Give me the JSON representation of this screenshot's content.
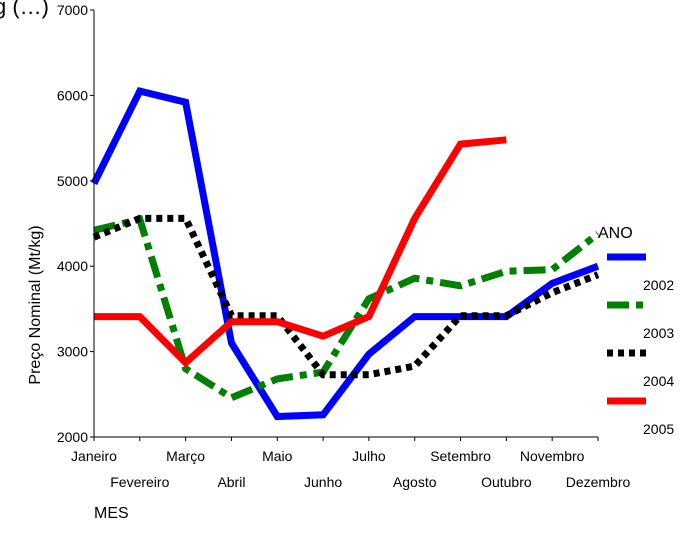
{
  "chart_data": {
    "type": "line",
    "title_fragment": "g (…)",
    "xlabel": "MES",
    "ylabel": "Preço Nominal (Mt/kg)",
    "ylim": [
      2000,
      7000
    ],
    "yticks": [
      2000,
      3000,
      4000,
      5000,
      6000,
      7000
    ],
    "categories": [
      "Janeiro",
      "Fevereiro",
      "Março",
      "Abril",
      "Maio",
      "Junho",
      "Julho",
      "Agosto",
      "Setembro",
      "Outubro",
      "Novembro",
      "Dezembro"
    ],
    "legend_title": "ANO",
    "legend_position": "right",
    "grid": false,
    "series": [
      {
        "name": "2002",
        "color": "#0000ff",
        "dash": "solid",
        "values": [
          4970,
          6050,
          5920,
          3100,
          2240,
          2260,
          2970,
          3410,
          3410,
          3410,
          3800,
          4000
        ]
      },
      {
        "name": "2003",
        "color": "#008000",
        "dash": "dashdot",
        "values": [
          4420,
          4550,
          2800,
          2460,
          2680,
          2760,
          3620,
          3860,
          3770,
          3940,
          3960,
          4380
        ]
      },
      {
        "name": "2004",
        "color": "#000000",
        "dash": "dotted",
        "values": [
          4340,
          4560,
          4560,
          3420,
          3420,
          2730,
          2730,
          2830,
          3420,
          3420,
          3690,
          3900
        ]
      },
      {
        "name": "2005",
        "color": "#ff0000",
        "dash": "solid",
        "values": [
          3410,
          3410,
          2870,
          3350,
          3350,
          3180,
          3410,
          4560,
          5430,
          5480,
          null,
          null
        ]
      }
    ]
  }
}
